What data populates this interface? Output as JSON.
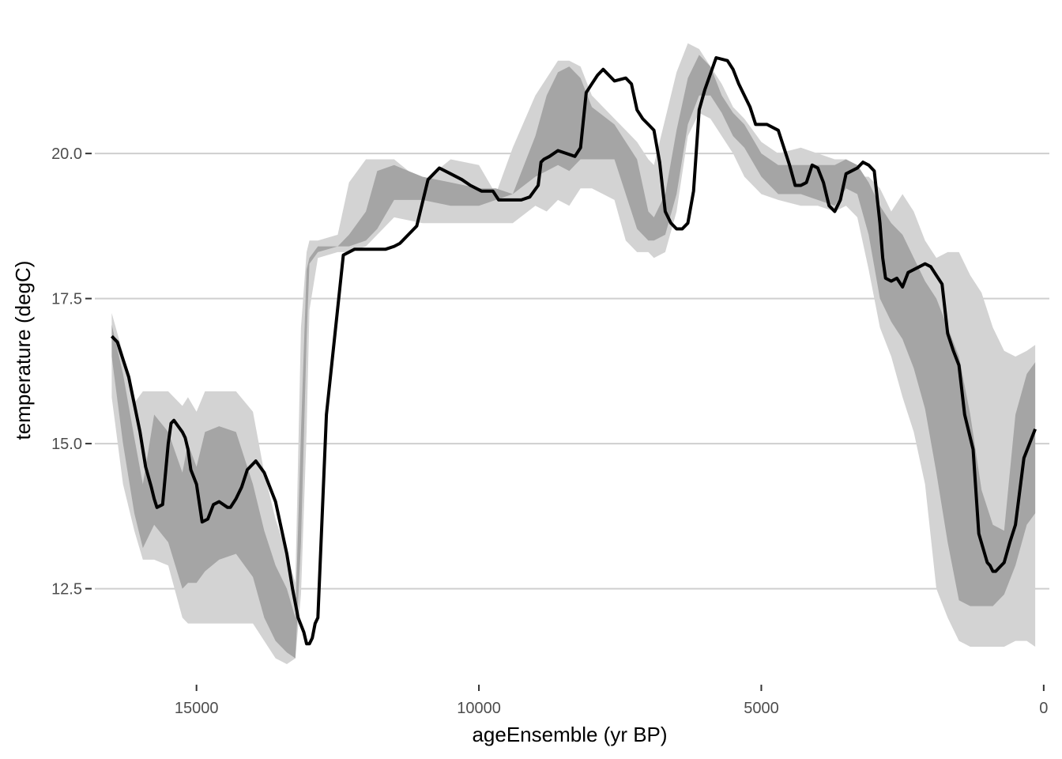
{
  "chart_data": {
    "type": "area",
    "xlabel": "ageEnsemble (yr BP)",
    "ylabel": "temperature (degC)",
    "x_reversed": true,
    "xlim": [
      16800,
      -100
    ],
    "ylim": [
      10.9,
      22.4
    ],
    "x_ticks": [
      15000,
      10000,
      5000,
      0
    ],
    "x_tick_labels": [
      "15000",
      "10000",
      "5000",
      "0"
    ],
    "y_ticks": [
      12.5,
      15.0,
      17.5,
      20.0
    ],
    "y_tick_labels": [
      "12.5",
      "15.0",
      "17.5",
      "20.0"
    ],
    "grid": {
      "horizontal": true,
      "vertical": false
    },
    "colors": {
      "outer_band": "#d3d3d3",
      "inner_band": "#a5a5a5",
      "median": "#000000",
      "grid": "#cfcfcf"
    },
    "series": [
      {
        "role": "outer-band",
        "x": [
          16500,
          16300,
          16100,
          15950,
          15750,
          15500,
          15250,
          15150,
          15000,
          14850,
          14600,
          14300,
          14000,
          13800,
          13600,
          13400,
          13250,
          13150,
          13050,
          13000,
          12850,
          12500,
          12300,
          12000,
          11800,
          11500,
          11000,
          10500,
          10000,
          9700,
          9400,
          9000,
          8800,
          8600,
          8400,
          8200,
          8000,
          7600,
          7400,
          7200,
          7000,
          6900,
          6700,
          6500,
          6300,
          6100,
          5900,
          5700,
          5500,
          5300,
          5000,
          4700,
          4300,
          4000,
          3700,
          3500,
          3300,
          3100,
          2900,
          2700,
          2500,
          2300,
          2100,
          1900,
          1700,
          1500,
          1300,
          1100,
          900,
          700,
          500,
          300,
          150
        ],
        "upper": [
          17.25,
          16.55,
          15.7,
          15.9,
          15.9,
          15.9,
          15.65,
          15.8,
          15.55,
          15.9,
          15.9,
          15.9,
          15.55,
          14.5,
          13.7,
          13.1,
          12.6,
          17.0,
          18.3,
          18.5,
          18.5,
          18.6,
          19.5,
          19.9,
          19.9,
          19.9,
          19.5,
          19.9,
          19.8,
          19.3,
          20.1,
          21.0,
          21.3,
          21.6,
          21.6,
          21.5,
          21.0,
          20.6,
          20.4,
          20.2,
          19.9,
          19.8,
          20.6,
          21.4,
          21.9,
          21.8,
          21.5,
          21.2,
          20.8,
          20.6,
          20.2,
          20.0,
          20.1,
          20.0,
          19.9,
          19.9,
          19.6,
          19.6,
          19.4,
          19.0,
          19.3,
          19.0,
          18.5,
          18.2,
          18.3,
          18.3,
          17.9,
          17.6,
          17.0,
          16.6,
          16.5,
          16.6,
          16.7
        ],
        "lower": [
          15.8,
          14.3,
          13.5,
          13.0,
          13.0,
          12.9,
          12.0,
          11.9,
          11.9,
          11.9,
          11.9,
          11.9,
          11.9,
          11.6,
          11.3,
          11.2,
          11.3,
          12.4,
          15.2,
          17.3,
          18.2,
          18.3,
          18.3,
          18.4,
          18.6,
          18.9,
          18.8,
          18.8,
          18.8,
          18.8,
          18.8,
          19.1,
          19.0,
          19.2,
          19.1,
          19.4,
          19.4,
          19.2,
          18.5,
          18.3,
          18.3,
          18.2,
          18.3,
          19.0,
          20.3,
          20.7,
          20.6,
          20.3,
          20.0,
          19.6,
          19.3,
          19.2,
          19.1,
          19.1,
          19.0,
          19.1,
          18.9,
          18.0,
          17.0,
          16.5,
          15.8,
          15.2,
          14.3,
          12.5,
          12.0,
          11.6,
          11.5,
          11.5,
          11.5,
          11.5,
          11.6,
          11.6,
          11.5
        ]
      },
      {
        "role": "inner-band",
        "x": [
          16500,
          16300,
          16100,
          15950,
          15750,
          15500,
          15250,
          15150,
          15000,
          14850,
          14600,
          14300,
          14000,
          13800,
          13600,
          13400,
          13250,
          13150,
          13050,
          13000,
          12850,
          12500,
          12300,
          12000,
          11800,
          11500,
          11000,
          10500,
          10000,
          9700,
          9400,
          9000,
          8800,
          8600,
          8400,
          8200,
          8000,
          7600,
          7400,
          7200,
          7000,
          6900,
          6700,
          6500,
          6300,
          6100,
          5900,
          5700,
          5500,
          5300,
          5000,
          4700,
          4300,
          4000,
          3700,
          3500,
          3300,
          3100,
          2900,
          2700,
          2500,
          2300,
          2100,
          1900,
          1700,
          1500,
          1300,
          1100,
          900,
          700,
          500,
          300,
          150
        ],
        "upper": [
          17.05,
          16.2,
          15.1,
          14.3,
          15.5,
          15.2,
          14.5,
          15.0,
          14.6,
          15.2,
          15.3,
          15.2,
          14.3,
          13.5,
          12.9,
          12.5,
          12.0,
          15.2,
          18.0,
          18.2,
          18.4,
          18.4,
          18.6,
          19.0,
          19.7,
          19.8,
          19.6,
          19.5,
          19.4,
          19.4,
          19.3,
          20.3,
          21.0,
          21.4,
          21.5,
          21.3,
          20.8,
          20.5,
          20.2,
          19.9,
          19.0,
          18.9,
          19.3,
          20.4,
          21.3,
          21.7,
          21.5,
          21.0,
          20.7,
          20.5,
          20.0,
          19.8,
          19.8,
          19.8,
          19.8,
          19.9,
          19.8,
          19.5,
          19.1,
          18.8,
          18.6,
          18.2,
          17.8,
          17.5,
          17.0,
          16.5,
          15.5,
          14.2,
          13.6,
          13.5,
          15.5,
          16.2,
          16.4
        ],
        "lower": [
          16.5,
          15.0,
          13.8,
          13.2,
          13.6,
          13.3,
          12.5,
          12.6,
          12.6,
          12.8,
          13.0,
          13.1,
          12.7,
          12.0,
          11.6,
          11.4,
          11.3,
          13.3,
          16.8,
          18.1,
          18.3,
          18.4,
          18.4,
          18.5,
          18.7,
          19.2,
          19.2,
          19.1,
          19.1,
          19.2,
          19.3,
          19.6,
          19.7,
          19.8,
          19.7,
          19.9,
          19.9,
          19.9,
          19.3,
          18.7,
          18.5,
          18.5,
          18.6,
          19.3,
          20.5,
          21.0,
          21.0,
          20.7,
          20.3,
          20.1,
          19.6,
          19.3,
          19.3,
          19.2,
          19.1,
          19.4,
          19.3,
          18.6,
          17.5,
          17.1,
          16.8,
          16.3,
          15.6,
          14.5,
          13.3,
          12.3,
          12.2,
          12.2,
          12.2,
          12.4,
          12.9,
          13.6,
          13.8
        ]
      },
      {
        "role": "median-line",
        "x": [
          16500,
          16400,
          16200,
          16000,
          15900,
          15800,
          15750,
          15700,
          15600,
          15500,
          15450,
          15400,
          15250,
          15200,
          15150,
          15100,
          15000,
          14900,
          14800,
          14700,
          14600,
          14450,
          14400,
          14300,
          14200,
          14100,
          13950,
          13800,
          13600,
          13400,
          13300,
          13200,
          13100,
          13050,
          13000,
          12950,
          12900,
          12850,
          12700,
          12400,
          12200,
          12000,
          11800,
          11650,
          11500,
          11400,
          11300,
          11100,
          10900,
          10700,
          10500,
          10300,
          10150,
          9950,
          9750,
          9650,
          9500,
          9250,
          9100,
          8950,
          8900,
          8850,
          8750,
          8600,
          8450,
          8300,
          8200,
          8100,
          8000,
          7900,
          7800,
          7600,
          7400,
          7300,
          7200,
          7100,
          7000,
          6900,
          6800,
          6700,
          6600,
          6500,
          6400,
          6300,
          6200,
          6100,
          6000,
          5800,
          5600,
          5500,
          5400,
          5200,
          5100,
          4900,
          4700,
          4500,
          4400,
          4300,
          4200,
          4100,
          4000,
          3900,
          3800,
          3700,
          3600,
          3500,
          3400,
          3300,
          3200,
          3100,
          3000,
          2900,
          2850,
          2800,
          2700,
          2600,
          2500,
          2400,
          2200,
          2100,
          2000,
          1900,
          1800,
          1700,
          1600,
          1500,
          1400,
          1250,
          1150,
          1000,
          950,
          900,
          850,
          700,
          600,
          500,
          350,
          150
        ],
        "y": [
          16.85,
          16.75,
          16.15,
          15.2,
          14.6,
          14.25,
          14.05,
          13.9,
          13.95,
          15.0,
          15.35,
          15.4,
          15.2,
          15.1,
          14.9,
          14.55,
          14.3,
          13.65,
          13.7,
          13.95,
          14.0,
          13.9,
          13.9,
          14.05,
          14.25,
          14.55,
          14.7,
          14.5,
          14.0,
          13.1,
          12.5,
          12.0,
          11.75,
          11.55,
          11.55,
          11.65,
          11.9,
          12.0,
          15.5,
          18.25,
          18.35,
          18.35,
          18.35,
          18.35,
          18.4,
          18.45,
          18.55,
          18.75,
          19.55,
          19.75,
          19.65,
          19.55,
          19.45,
          19.35,
          19.35,
          19.2,
          19.2,
          19.2,
          19.25,
          19.45,
          19.85,
          19.9,
          19.95,
          20.05,
          20.0,
          19.95,
          20.1,
          21.05,
          21.2,
          21.35,
          21.45,
          21.25,
          21.3,
          21.2,
          20.75,
          20.6,
          20.5,
          20.4,
          19.85,
          19.0,
          18.8,
          18.7,
          18.7,
          18.8,
          19.35,
          20.75,
          21.1,
          21.65,
          21.6,
          21.45,
          21.2,
          20.8,
          20.5,
          20.5,
          20.4,
          19.8,
          19.45,
          19.45,
          19.5,
          19.8,
          19.75,
          19.5,
          19.1,
          19.0,
          19.2,
          19.65,
          19.7,
          19.75,
          19.85,
          19.8,
          19.7,
          18.8,
          18.2,
          17.85,
          17.8,
          17.85,
          17.7,
          17.95,
          18.05,
          18.1,
          18.05,
          17.9,
          17.75,
          16.9,
          16.6,
          16.35,
          15.5,
          14.9,
          13.45,
          12.95,
          12.9,
          12.8,
          12.8,
          12.95,
          13.3,
          13.6,
          14.75,
          15.25
        ]
      }
    ]
  }
}
